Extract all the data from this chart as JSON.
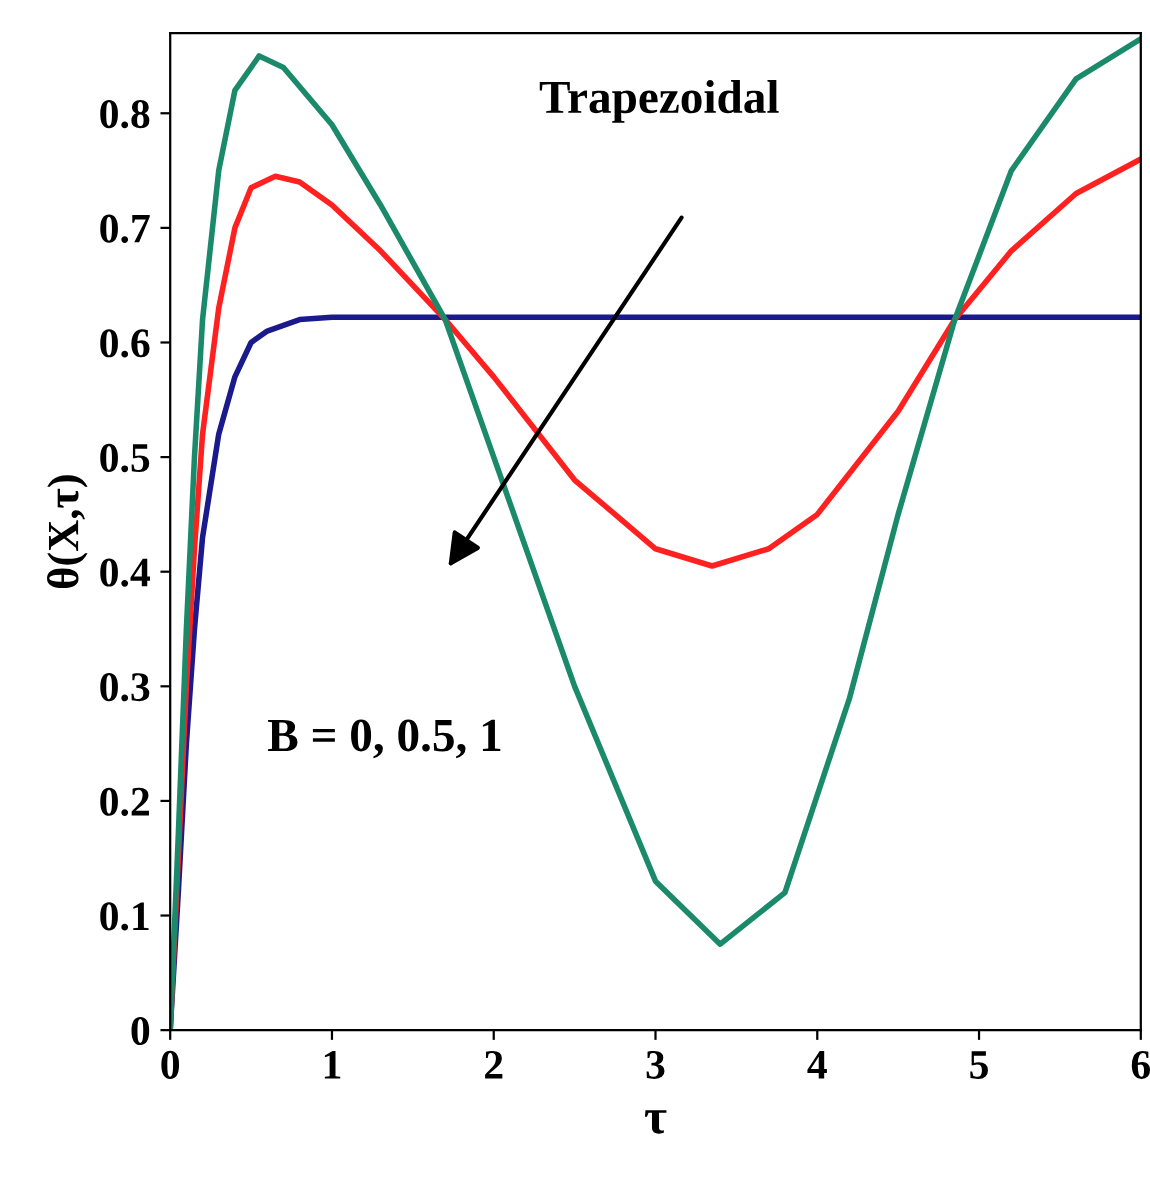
{
  "chart_data": {
    "type": "line",
    "xlabel": "τ",
    "ylabel": "θ(X,τ)",
    "xlim": [
      0,
      6
    ],
    "ylim": [
      0,
      0.87
    ],
    "xticks": [
      0,
      1,
      2,
      3,
      4,
      5,
      6
    ],
    "yticks": [
      0,
      0.1,
      0.2,
      0.3,
      0.4,
      0.5,
      0.6,
      0.7,
      0.8
    ],
    "grid": false,
    "legend": false,
    "annotations": [
      "Trapezoidal",
      "B = 0, 0.5, 1"
    ],
    "series": [
      {
        "color": "#1a1a8c",
        "x": [
          0,
          0.05,
          0.1,
          0.15,
          0.2,
          0.3,
          0.4,
          0.5,
          0.6,
          0.8,
          1,
          2,
          6
        ],
        "values": [
          0,
          0.12,
          0.25,
          0.35,
          0.43,
          0.52,
          0.57,
          0.6,
          0.61,
          0.62,
          0.622,
          0.622,
          0.622
        ]
      },
      {
        "color": "#ff2020",
        "x": [
          0,
          0.05,
          0.1,
          0.15,
          0.2,
          0.3,
          0.4,
          0.5,
          0.65,
          0.8,
          1,
          1.3,
          1.7,
          2,
          2.5,
          3,
          3.35,
          3.7,
          4,
          4.5,
          4.85,
          5.2,
          5.6,
          6
        ],
        "values": [
          0,
          0.15,
          0.3,
          0.42,
          0.52,
          0.63,
          0.7,
          0.735,
          0.745,
          0.74,
          0.72,
          0.68,
          0.62,
          0.57,
          0.48,
          0.42,
          0.405,
          0.42,
          0.45,
          0.54,
          0.62,
          0.68,
          0.73,
          0.76
        ]
      },
      {
        "color": "#1a8a6a",
        "x": [
          0,
          0.05,
          0.1,
          0.15,
          0.2,
          0.3,
          0.4,
          0.55,
          0.7,
          1,
          1.3,
          1.7,
          2,
          2.5,
          3,
          3.4,
          3.8,
          4.2,
          4.5,
          4.85,
          5.2,
          5.6,
          6
        ],
        "values": [
          0,
          0.17,
          0.35,
          0.5,
          0.62,
          0.75,
          0.82,
          0.85,
          0.84,
          0.79,
          0.72,
          0.62,
          0.5,
          0.3,
          0.13,
          0.075,
          0.12,
          0.29,
          0.45,
          0.62,
          0.75,
          0.83,
          0.865
        ]
      }
    ]
  }
}
